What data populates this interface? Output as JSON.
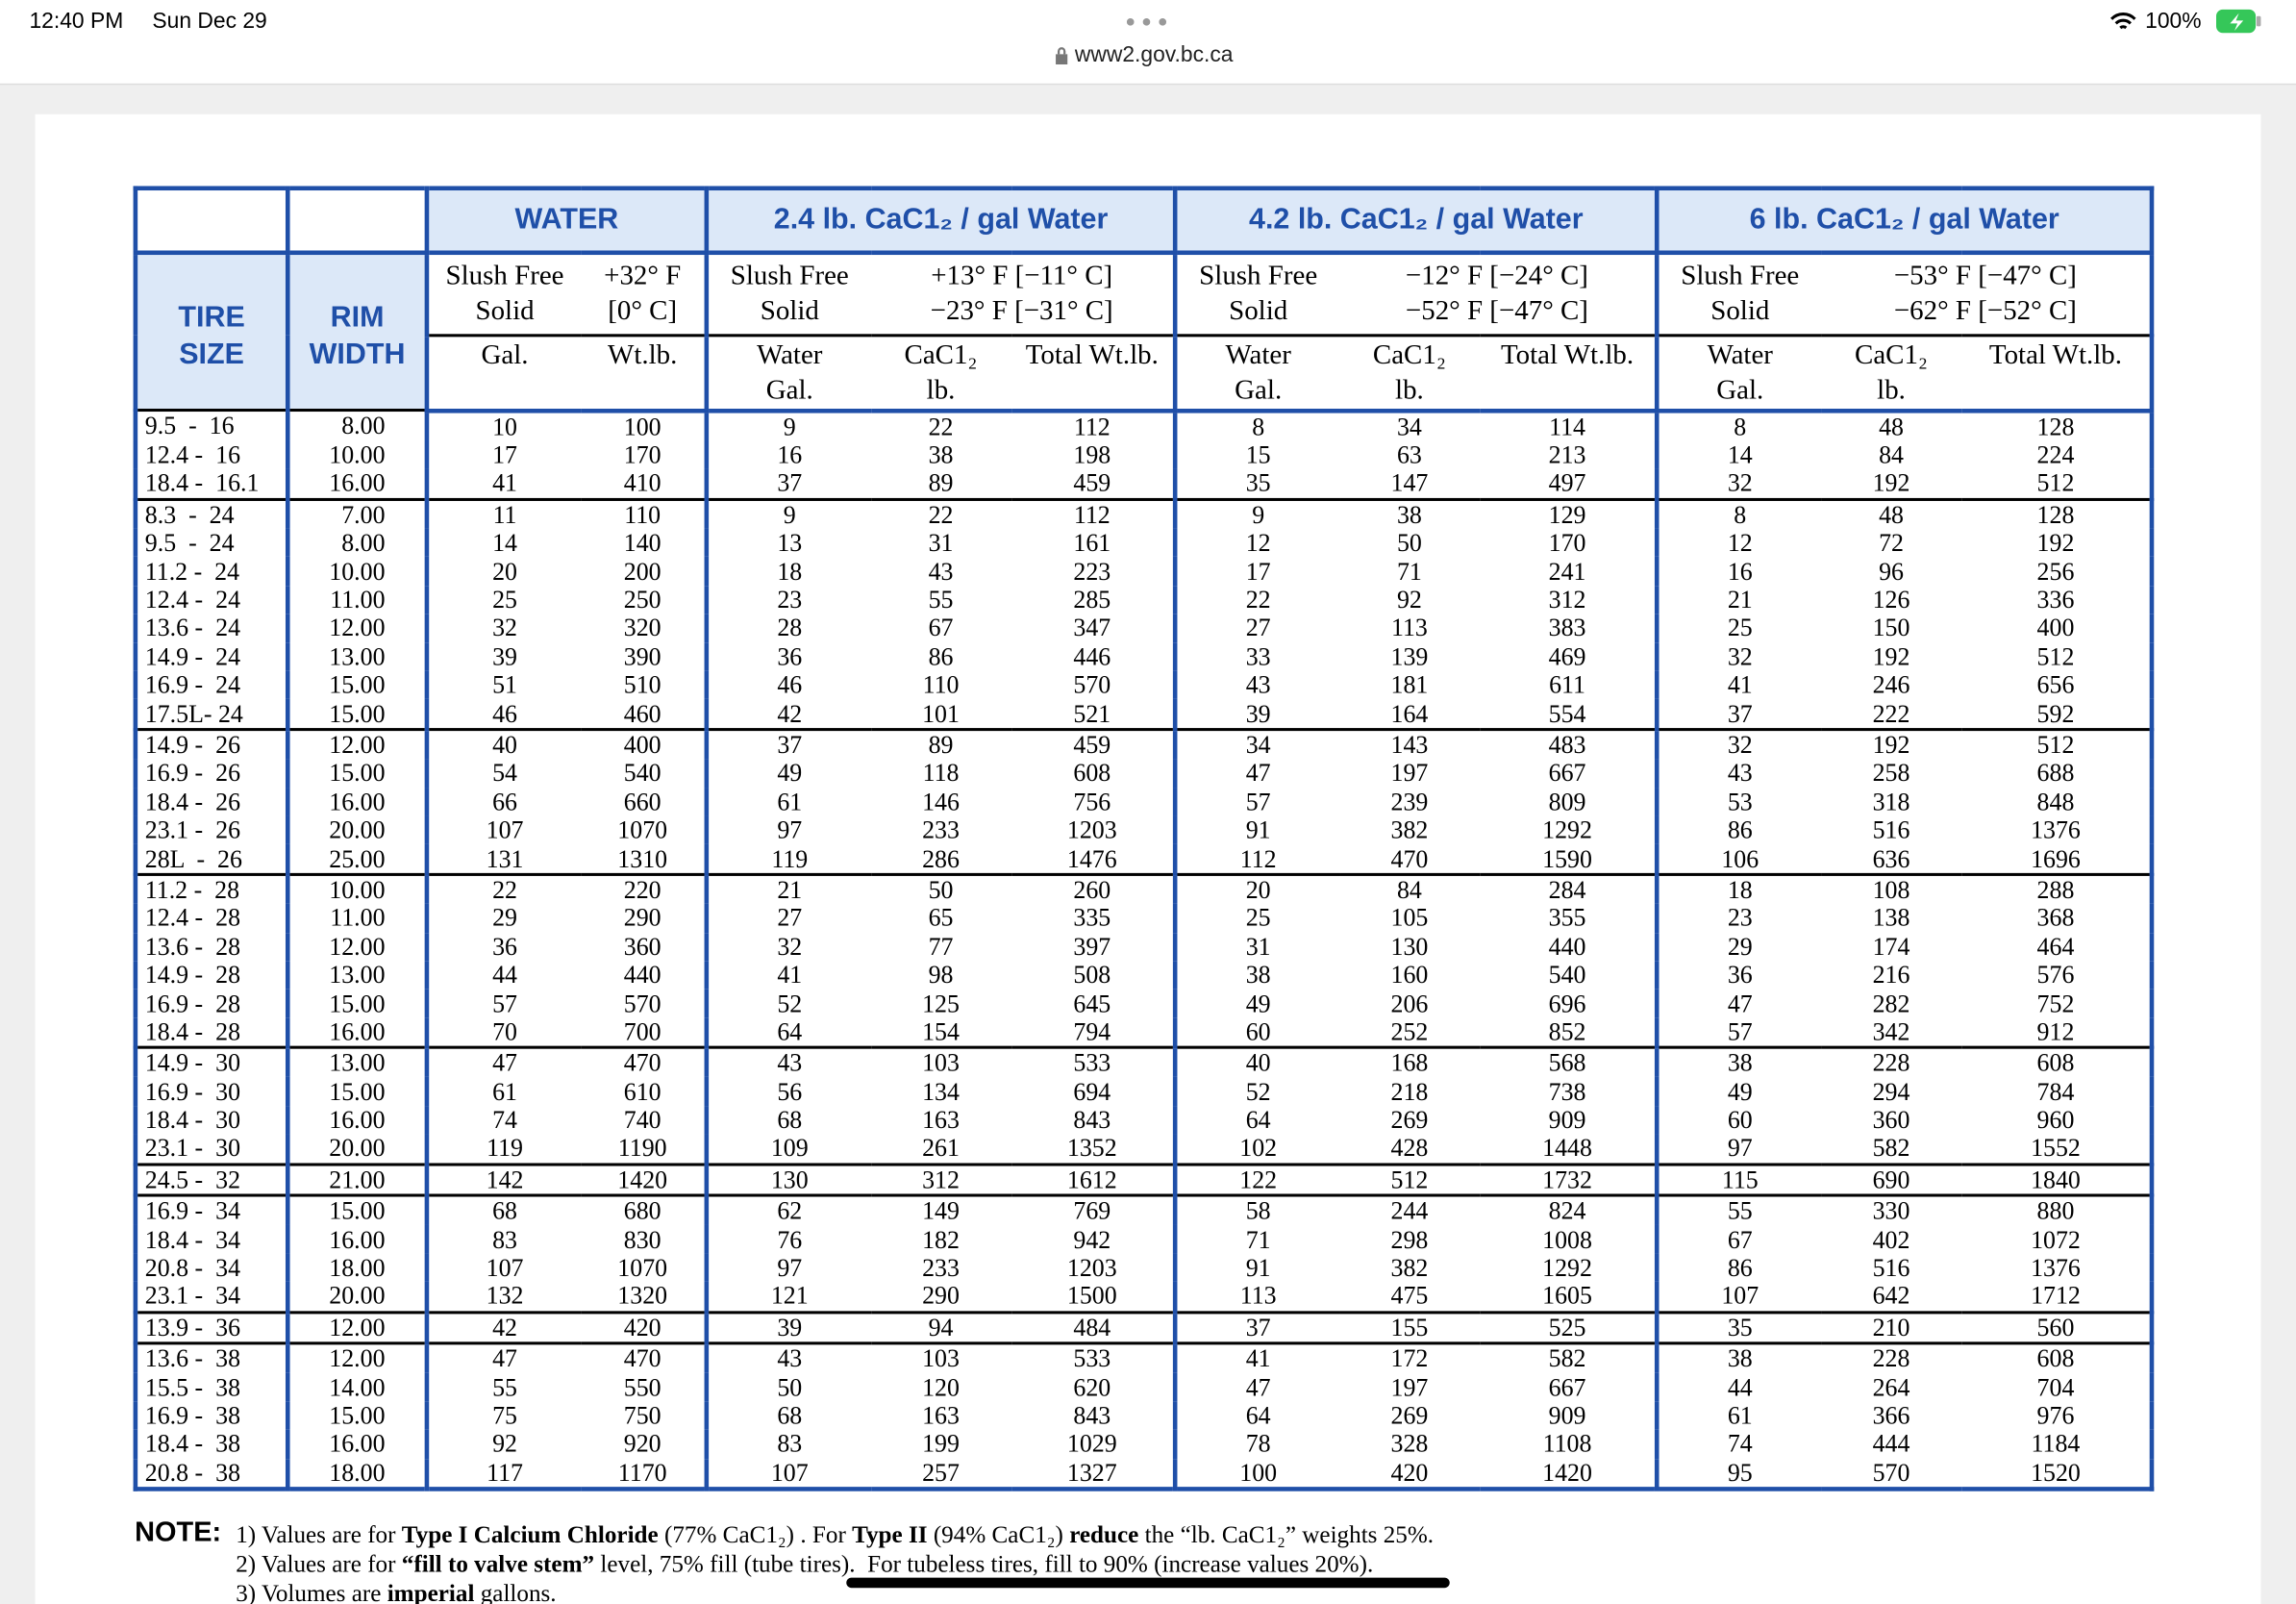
{
  "status_bar": {
    "time": "12:40 PM",
    "date": "Sun Dec 29",
    "url": "www2.gov.bc.ca",
    "battery": "100%"
  },
  "header": {
    "tire_size": "TIRE\nSIZE",
    "rim_width": "RIM\nWIDTH",
    "groups": [
      {
        "title": "WATER",
        "slush": "Slush Free\nSolid",
        "temp": "+32° F\n[0° C]",
        "subheads": [
          "Gal.",
          "Wt.lb."
        ]
      },
      {
        "title": "2.4 lb. CaC1₂ / gal Water",
        "slush": "Slush Free\nSolid",
        "temp": "+13° F [−11° C]\n−23° F [−31° C]",
        "subheads": [
          "Water\nGal.",
          "CaC1₂\nlb.",
          "Total Wt.lb."
        ]
      },
      {
        "title": "4.2 lb. CaC1₂ / gal Water",
        "slush": "Slush Free\nSolid",
        "temp": "−12° F [−24° C]\n−52° F [−47° C]",
        "subheads": [
          "Water\nGal.",
          "CaC1₂\nlb.",
          "Total Wt.lb."
        ]
      },
      {
        "title": "6 lb. CaC1₂ / gal Water",
        "slush": "Slush Free\nSolid",
        "temp": "−53° F [−47° C]\n−62° F [−52° C]",
        "subheads": [
          "Water\nGal.",
          "CaC1₂\nlb.",
          "Total Wt.lb."
        ]
      }
    ]
  },
  "table": {
    "groups": [
      {
        "rows": [
          [
            "9.5  -  16",
            "8.00",
            "10",
            "100",
            "9",
            "22",
            "112",
            "8",
            "34",
            "114",
            "8",
            "48",
            "128"
          ],
          [
            "12.4 -  16",
            "10.00",
            "17",
            "170",
            "16",
            "38",
            "198",
            "15",
            "63",
            "213",
            "14",
            "84",
            "224"
          ],
          [
            "18.4 -  16.1",
            "16.00",
            "41",
            "410",
            "37",
            "89",
            "459",
            "35",
            "147",
            "497",
            "32",
            "192",
            "512"
          ]
        ]
      },
      {
        "rows": [
          [
            "8.3  -  24",
            "7.00",
            "11",
            "110",
            "9",
            "22",
            "112",
            "9",
            "38",
            "129",
            "8",
            "48",
            "128"
          ],
          [
            "9.5  -  24",
            "8.00",
            "14",
            "140",
            "13",
            "31",
            "161",
            "12",
            "50",
            "170",
            "12",
            "72",
            "192"
          ],
          [
            "11.2 -  24",
            "10.00",
            "20",
            "200",
            "18",
            "43",
            "223",
            "17",
            "71",
            "241",
            "16",
            "96",
            "256"
          ],
          [
            "12.4 -  24",
            "11.00",
            "25",
            "250",
            "23",
            "55",
            "285",
            "22",
            "92",
            "312",
            "21",
            "126",
            "336"
          ],
          [
            "13.6 -  24",
            "12.00",
            "32",
            "320",
            "28",
            "67",
            "347",
            "27",
            "113",
            "383",
            "25",
            "150",
            "400"
          ],
          [
            "14.9 -  24",
            "13.00",
            "39",
            "390",
            "36",
            "86",
            "446",
            "33",
            "139",
            "469",
            "32",
            "192",
            "512"
          ],
          [
            "16.9 -  24",
            "15.00",
            "51",
            "510",
            "46",
            "110",
            "570",
            "43",
            "181",
            "611",
            "41",
            "246",
            "656"
          ],
          [
            "17.5L- 24",
            "15.00",
            "46",
            "460",
            "42",
            "101",
            "521",
            "39",
            "164",
            "554",
            "37",
            "222",
            "592"
          ]
        ]
      },
      {
        "rows": [
          [
            "14.9 -  26",
            "12.00",
            "40",
            "400",
            "37",
            "89",
            "459",
            "34",
            "143",
            "483",
            "32",
            "192",
            "512"
          ],
          [
            "16.9 -  26",
            "15.00",
            "54",
            "540",
            "49",
            "118",
            "608",
            "47",
            "197",
            "667",
            "43",
            "258",
            "688"
          ],
          [
            "18.4 -  26",
            "16.00",
            "66",
            "660",
            "61",
            "146",
            "756",
            "57",
            "239",
            "809",
            "53",
            "318",
            "848"
          ],
          [
            "23.1 -  26",
            "20.00",
            "107",
            "1070",
            "97",
            "233",
            "1203",
            "91",
            "382",
            "1292",
            "86",
            "516",
            "1376"
          ],
          [
            "28L  -  26",
            "25.00",
            "131",
            "1310",
            "119",
            "286",
            "1476",
            "112",
            "470",
            "1590",
            "106",
            "636",
            "1696"
          ]
        ]
      },
      {
        "rows": [
          [
            "11.2 -  28",
            "10.00",
            "22",
            "220",
            "21",
            "50",
            "260",
            "20",
            "84",
            "284",
            "18",
            "108",
            "288"
          ],
          [
            "12.4 -  28",
            "11.00",
            "29",
            "290",
            "27",
            "65",
            "335",
            "25",
            "105",
            "355",
            "23",
            "138",
            "368"
          ],
          [
            "13.6 -  28",
            "12.00",
            "36",
            "360",
            "32",
            "77",
            "397",
            "31",
            "130",
            "440",
            "29",
            "174",
            "464"
          ],
          [
            "14.9 -  28",
            "13.00",
            "44",
            "440",
            "41",
            "98",
            "508",
            "38",
            "160",
            "540",
            "36",
            "216",
            "576"
          ],
          [
            "16.9 -  28",
            "15.00",
            "57",
            "570",
            "52",
            "125",
            "645",
            "49",
            "206",
            "696",
            "47",
            "282",
            "752"
          ],
          [
            "18.4 -  28",
            "16.00",
            "70",
            "700",
            "64",
            "154",
            "794",
            "60",
            "252",
            "852",
            "57",
            "342",
            "912"
          ]
        ]
      },
      {
        "rows": [
          [
            "14.9 -  30",
            "13.00",
            "47",
            "470",
            "43",
            "103",
            "533",
            "40",
            "168",
            "568",
            "38",
            "228",
            "608"
          ],
          [
            "16.9 -  30",
            "15.00",
            "61",
            "610",
            "56",
            "134",
            "694",
            "52",
            "218",
            "738",
            "49",
            "294",
            "784"
          ],
          [
            "18.4 -  30",
            "16.00",
            "74",
            "740",
            "68",
            "163",
            "843",
            "64",
            "269",
            "909",
            "60",
            "360",
            "960"
          ],
          [
            "23.1 -  30",
            "20.00",
            "119",
            "1190",
            "109",
            "261",
            "1352",
            "102",
            "428",
            "1448",
            "97",
            "582",
            "1552"
          ]
        ]
      },
      {
        "rows": [
          [
            "24.5 -  32",
            "21.00",
            "142",
            "1420",
            "130",
            "312",
            "1612",
            "122",
            "512",
            "1732",
            "115",
            "690",
            "1840"
          ]
        ]
      },
      {
        "rows": [
          [
            "16.9 -  34",
            "15.00",
            "68",
            "680",
            "62",
            "149",
            "769",
            "58",
            "244",
            "824",
            "55",
            "330",
            "880"
          ],
          [
            "18.4 -  34",
            "16.00",
            "83",
            "830",
            "76",
            "182",
            "942",
            "71",
            "298",
            "1008",
            "67",
            "402",
            "1072"
          ],
          [
            "20.8 -  34",
            "18.00",
            "107",
            "1070",
            "97",
            "233",
            "1203",
            "91",
            "382",
            "1292",
            "86",
            "516",
            "1376"
          ],
          [
            "23.1 -  34",
            "20.00",
            "132",
            "1320",
            "121",
            "290",
            "1500",
            "113",
            "475",
            "1605",
            "107",
            "642",
            "1712"
          ]
        ]
      },
      {
        "rows": [
          [
            "13.9 -  36",
            "12.00",
            "42",
            "420",
            "39",
            "94",
            "484",
            "37",
            "155",
            "525",
            "35",
            "210",
            "560"
          ]
        ]
      },
      {
        "rows": [
          [
            "13.6 -  38",
            "12.00",
            "47",
            "470",
            "43",
            "103",
            "533",
            "41",
            "172",
            "582",
            "38",
            "228",
            "608"
          ],
          [
            "15.5 -  38",
            "14.00",
            "55",
            "550",
            "50",
            "120",
            "620",
            "47",
            "197",
            "667",
            "44",
            "264",
            "704"
          ],
          [
            "16.9 -  38",
            "15.00",
            "75",
            "750",
            "68",
            "163",
            "843",
            "64",
            "269",
            "909",
            "61",
            "366",
            "976"
          ],
          [
            "18.4 -  38",
            "16.00",
            "92",
            "920",
            "83",
            "199",
            "1029",
            "78",
            "328",
            "1108",
            "74",
            "444",
            "1184"
          ],
          [
            "20.8 -  38",
            "18.00",
            "117",
            "1170",
            "107",
            "257",
            "1327",
            "100",
            "420",
            "1420",
            "95",
            "570",
            "1520"
          ]
        ]
      }
    ]
  },
  "notes": {
    "label": "NOTE:",
    "note1": [
      "1) Values are for ",
      "Type I Calcium Chloride",
      " (77% CaC1₂) . For ",
      "Type II",
      " (94% CaC1₂) ",
      "reduce",
      " the “lb. CaC1₂” weights 25%."
    ],
    "note2": [
      "2) Values are for ",
      "“fill to valve stem”",
      " level, 75% fill (tube tires).  For tubeless tires, fill to 90% (increase values 20%)."
    ],
    "note3": [
      "3) Volumes are ",
      "imperial",
      " gallons."
    ]
  }
}
